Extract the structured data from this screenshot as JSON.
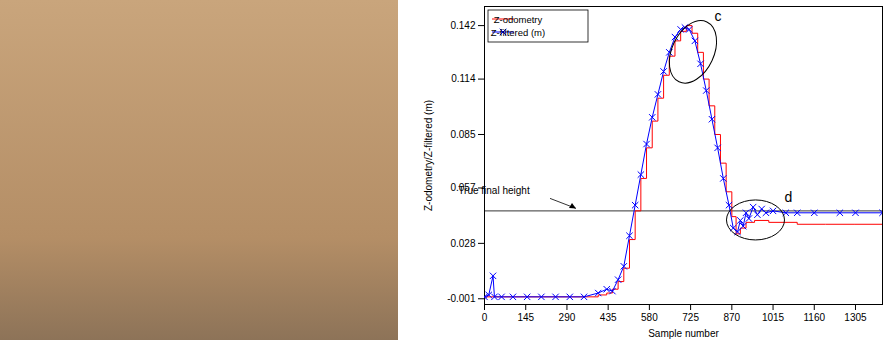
{
  "chart_data": {
    "type": "line",
    "xlabel": "Sample number",
    "ylabel": "Z-odometry/Z-filtered (m)",
    "xlim": [
      0,
      1400
    ],
    "xticks": [
      0,
      145,
      290,
      435,
      580,
      725,
      870,
      1015,
      1160,
      1305
    ],
    "ylim": [
      -0.004,
      0.152
    ],
    "yticks": [
      -0.001,
      0.028,
      0.057,
      0.085,
      0.114,
      0.142
    ],
    "grid": false,
    "legend": "upper left",
    "series": [
      {
        "name": "Z-odometry",
        "color": "#ff0000",
        "line_style": "steps",
        "x": [
          0,
          100,
          200,
          300,
          400,
          430,
          450,
          470,
          490,
          510,
          530,
          550,
          570,
          590,
          610,
          630,
          650,
          670,
          690,
          710,
          730,
          750,
          770,
          790,
          810,
          830,
          850,
          870,
          885,
          900,
          920,
          950,
          1000,
          1100,
          1200,
          1300,
          1400
        ],
        "values": [
          0,
          0,
          0,
          0,
          0.001,
          0.002,
          0.004,
          0.008,
          0.015,
          0.03,
          0.045,
          0.062,
          0.078,
          0.092,
          0.104,
          0.116,
          0.126,
          0.134,
          0.139,
          0.142,
          0.138,
          0.128,
          0.114,
          0.1,
          0.085,
          0.07,
          0.055,
          0.042,
          0.033,
          0.036,
          0.039,
          0.04,
          0.039,
          0.038,
          0.038,
          0.038,
          0.038
        ]
      },
      {
        "name": "Z-filtered (m)",
        "color": "#0000ff",
        "marker": "x",
        "x": [
          0,
          15,
          30,
          35,
          60,
          100,
          150,
          200,
          250,
          300,
          350,
          400,
          430,
          450,
          470,
          490,
          510,
          530,
          550,
          570,
          590,
          610,
          630,
          650,
          670,
          690,
          705,
          720,
          740,
          760,
          780,
          800,
          820,
          840,
          860,
          875,
          890,
          900,
          910,
          920,
          930,
          945,
          960,
          975,
          990,
          1015,
          1060,
          1100,
          1160,
          1250,
          1305,
          1400
        ],
        "values": [
          0,
          0.001,
          0.011,
          0,
          0,
          0,
          0,
          0,
          0,
          0,
          0,
          0.002,
          0.004,
          0.003,
          0.009,
          0.016,
          0.032,
          0.048,
          0.064,
          0.08,
          0.094,
          0.106,
          0.118,
          0.128,
          0.136,
          0.14,
          0.141,
          0.14,
          0.134,
          0.122,
          0.108,
          0.093,
          0.078,
          0.062,
          0.048,
          0.036,
          0.034,
          0.04,
          0.037,
          0.044,
          0.041,
          0.047,
          0.043,
          0.046,
          0.044,
          0.045,
          0.044,
          0.044,
          0.044,
          0.044,
          0.044,
          0.044
        ]
      }
    ],
    "reference_line": {
      "label": "True final height",
      "value": 0.045
    },
    "annotations": [
      {
        "text": "c",
        "x": 735,
        "y": 0.128
      },
      {
        "text": "d",
        "x": 955,
        "y": 0.04
      }
    ]
  }
}
